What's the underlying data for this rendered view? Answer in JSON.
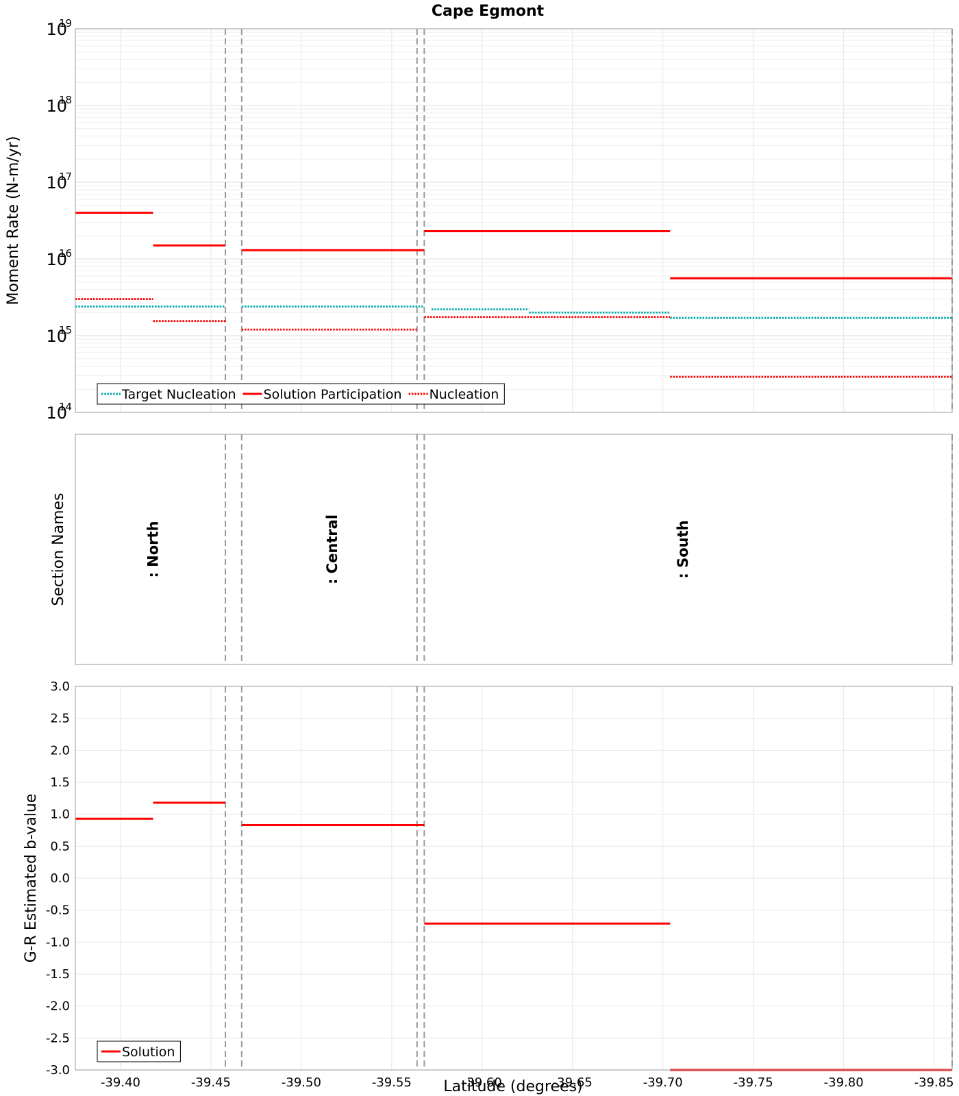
{
  "chart_data": {
    "title": "Cape Egmont",
    "x": {
      "label": "Latitude (degrees)",
      "range": [
        -39.375,
        -39.86
      ],
      "ticks": [
        -39.4,
        -39.45,
        -39.5,
        -39.55,
        -39.6,
        -39.65,
        -39.7,
        -39.75,
        -39.8,
        -39.85
      ],
      "tick_labels": [
        "-39.40",
        "-39.45",
        "-39.50",
        "-39.55",
        "-39.60",
        "-39.65",
        "-39.70",
        "-39.75",
        "-39.80",
        "-39.85"
      ]
    },
    "section_boundaries": [
      -39.458,
      -39.467,
      -39.564,
      -39.568
    ],
    "panels": [
      {
        "id": "moment",
        "type": "line",
        "ylabel": "Moment Rate (N-m/yr)",
        "yscale": "log",
        "ylim": [
          100000000000000.0,
          1e+19
        ],
        "yticks": [
          {
            "base": "10",
            "exp": "14",
            "value": 100000000000000.0
          },
          {
            "base": "10",
            "exp": "15",
            "value": 1000000000000000.0
          },
          {
            "base": "10",
            "exp": "16",
            "value": 1e+16
          },
          {
            "base": "10",
            "exp": "17",
            "value": 1e+17
          },
          {
            "base": "10",
            "exp": "18",
            "value": 1e+18
          },
          {
            "base": "10",
            "exp": "19",
            "value": 1e+19
          }
        ],
        "grid": true,
        "legend_position": "bottom-left",
        "series": [
          {
            "name": "Target Nucleation",
            "color": "#00AAAA",
            "style": "dotted",
            "segments": [
              {
                "x0": -39.375,
                "x1": -39.458,
                "y": 2400000000000000.0
              },
              {
                "x0": -39.467,
                "x1": -39.568,
                "y": 2400000000000000.0
              },
              {
                "x0": -39.572,
                "x1": -39.626,
                "y": 2200000000000000.0
              },
              {
                "x0": -39.626,
                "x1": -39.704,
                "y": 2000000000000000.0
              },
              {
                "x0": -39.704,
                "x1": -39.86,
                "y": 1700000000000000.0
              }
            ]
          },
          {
            "name": "Solution Participation",
            "color": "#FF0000",
            "style": "solid",
            "segments": [
              {
                "x0": -39.375,
                "x1": -39.418,
                "y": 4e+16
              },
              {
                "x0": -39.418,
                "x1": -39.458,
                "y": 1.5e+16
              },
              {
                "x0": -39.467,
                "x1": -39.568,
                "y": 1.3e+16
              },
              {
                "x0": -39.568,
                "x1": -39.704,
                "y": 2.3e+16
              },
              {
                "x0": -39.704,
                "x1": -39.86,
                "y": 5600000000000000.0
              }
            ]
          },
          {
            "name": "Nucleation",
            "color": "#FF0000",
            "style": "dotted",
            "segments": [
              {
                "x0": -39.375,
                "x1": -39.418,
                "y": 3000000000000000.0
              },
              {
                "x0": -39.418,
                "x1": -39.458,
                "y": 1550000000000000.0
              },
              {
                "x0": -39.467,
                "x1": -39.564,
                "y": 1200000000000000.0
              },
              {
                "x0": -39.568,
                "x1": -39.704,
                "y": 1750000000000000.0
              },
              {
                "x0": -39.704,
                "x1": -39.86,
                "y": 290000000000000.0
              }
            ]
          }
        ]
      },
      {
        "id": "sections",
        "ylabel": "Section Names",
        "labels": [
          {
            "text": ": North",
            "x": -39.418
          },
          {
            "text": ": Central",
            "x": -39.517
          },
          {
            "text": ": South",
            "x": -39.711
          }
        ]
      },
      {
        "id": "bvalue",
        "type": "line",
        "ylabel": "G-R Estimated b-value",
        "ylim": [
          -3.0,
          3.0
        ],
        "yticks": [
          3.0,
          2.5,
          2.0,
          1.5,
          1.0,
          0.5,
          0.0,
          -0.5,
          -1.0,
          -1.5,
          -2.0,
          -2.5,
          -3.0
        ],
        "ytick_labels": [
          "3.0",
          "2.5",
          "2.0",
          "1.5",
          "1.0",
          "0.5",
          "0.0",
          "-0.5",
          "-1.0",
          "-1.5",
          "-2.0",
          "-2.5",
          "-3.0"
        ],
        "grid": true,
        "legend_position": "bottom-left",
        "series": [
          {
            "name": "Solution",
            "color": "#FF0000",
            "style": "solid",
            "segments": [
              {
                "x0": -39.375,
                "x1": -39.418,
                "y": 0.93
              },
              {
                "x0": -39.418,
                "x1": -39.458,
                "y": 1.18
              },
              {
                "x0": -39.467,
                "x1": -39.568,
                "y": 0.83
              },
              {
                "x0": -39.568,
                "x1": -39.704,
                "y": -0.71
              },
              {
                "x0": -39.704,
                "x1": -39.86,
                "y": -3.0
              }
            ]
          }
        ]
      }
    ]
  }
}
